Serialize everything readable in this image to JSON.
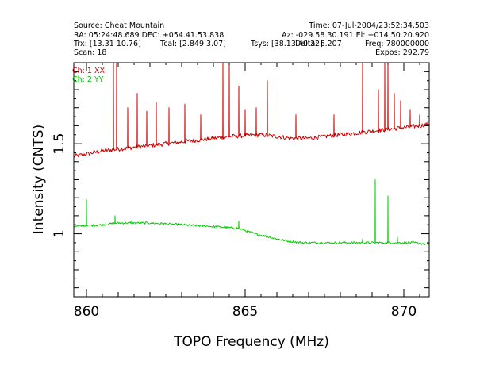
{
  "header": {
    "source": "Source: Cheat Mountain",
    "time": "Time: 07-Jul-2004/23:52:34.503",
    "ra_dec": "RA: 05:24:48.689 DEC: +054.41.53.838",
    "az_el": "Az: -029.58.30.191 El: +014.50.20.920",
    "trx": "Trx: [13.31 10.76]",
    "tcal": "Tcal: [2.849 3.07]",
    "tsys": "Tsys: [38.13 40.32]",
    "deltaf": "Delta: 6.207",
    "freq": "Freq: 780000000",
    "scan": "Scan: 18",
    "expos": "Expos: 292.79"
  },
  "colors": {
    "ch1": "#cc0000",
    "ch2": "#00cc00",
    "axis": "#000000"
  },
  "chart_data": {
    "type": "line",
    "title": "",
    "xlabel": "TOPO Frequency (MHz)",
    "ylabel": "Intensity (CNTS)",
    "xlim": [
      859.6,
      870.8
    ],
    "ylim": [
      0.65,
      1.95
    ],
    "x_ticks": [
      860,
      865,
      870
    ],
    "x_tick_labels": [
      "860",
      "865",
      "870"
    ],
    "y_ticks": [
      1.0,
      1.5
    ],
    "y_tick_labels": [
      "1",
      "1.5"
    ],
    "legend": [
      "Ch: 1 XX",
      "Ch: 2 YY"
    ],
    "series": [
      {
        "name": "Ch: 1 XX",
        "color": "#cc0000",
        "baseline": {
          "x": [
            859.6,
            860.5,
            861.5,
            862.5,
            863.5,
            864.5,
            865.5,
            866.0,
            866.5,
            867.0,
            867.5,
            868.0,
            868.5,
            869.0,
            869.5,
            870.0,
            870.5,
            870.8
          ],
          "y": [
            1.43,
            1.46,
            1.48,
            1.5,
            1.52,
            1.54,
            1.55,
            1.54,
            1.53,
            1.53,
            1.54,
            1.55,
            1.56,
            1.57,
            1.58,
            1.59,
            1.6,
            1.61
          ]
        },
        "spikes": [
          {
            "x": 860.85,
            "y": 1.95
          },
          {
            "x": 860.95,
            "y": 1.95
          },
          {
            "x": 861.3,
            "y": 1.7
          },
          {
            "x": 861.6,
            "y": 1.78
          },
          {
            "x": 861.9,
            "y": 1.68
          },
          {
            "x": 862.2,
            "y": 1.73
          },
          {
            "x": 862.6,
            "y": 1.7
          },
          {
            "x": 863.1,
            "y": 1.72
          },
          {
            "x": 863.6,
            "y": 1.66
          },
          {
            "x": 864.3,
            "y": 1.95
          },
          {
            "x": 864.5,
            "y": 1.95
          },
          {
            "x": 864.8,
            "y": 1.82
          },
          {
            "x": 865.0,
            "y": 1.69
          },
          {
            "x": 865.35,
            "y": 1.7
          },
          {
            "x": 865.7,
            "y": 1.85
          },
          {
            "x": 866.6,
            "y": 1.66
          },
          {
            "x": 867.8,
            "y": 1.66
          },
          {
            "x": 868.7,
            "y": 1.95
          },
          {
            "x": 869.2,
            "y": 1.8
          },
          {
            "x": 869.4,
            "y": 1.95
          },
          {
            "x": 869.5,
            "y": 1.95
          },
          {
            "x": 869.7,
            "y": 1.78
          },
          {
            "x": 869.9,
            "y": 1.74
          },
          {
            "x": 870.2,
            "y": 1.69
          },
          {
            "x": 870.5,
            "y": 1.66
          }
        ]
      },
      {
        "name": "Ch: 2 YY",
        "color": "#00cc00",
        "baseline": {
          "x": [
            859.6,
            860.5,
            861.0,
            862.0,
            863.0,
            864.0,
            864.8,
            865.3,
            865.8,
            866.3,
            866.8,
            867.3,
            867.8,
            868.3,
            868.8,
            869.3,
            869.8,
            870.3,
            870.8
          ],
          "y": [
            1.04,
            1.05,
            1.06,
            1.06,
            1.05,
            1.04,
            1.03,
            1.0,
            0.98,
            0.96,
            0.95,
            0.95,
            0.95,
            0.95,
            0.95,
            0.95,
            0.95,
            0.95,
            0.94
          ]
        },
        "spikes": [
          {
            "x": 860.0,
            "y": 1.19
          },
          {
            "x": 860.9,
            "y": 1.1
          },
          {
            "x": 861.4,
            "y": 1.07
          },
          {
            "x": 864.8,
            "y": 1.07
          },
          {
            "x": 868.7,
            "y": 0.97
          },
          {
            "x": 869.1,
            "y": 1.3
          },
          {
            "x": 869.5,
            "y": 1.21
          },
          {
            "x": 869.8,
            "y": 0.98
          }
        ]
      }
    ]
  }
}
